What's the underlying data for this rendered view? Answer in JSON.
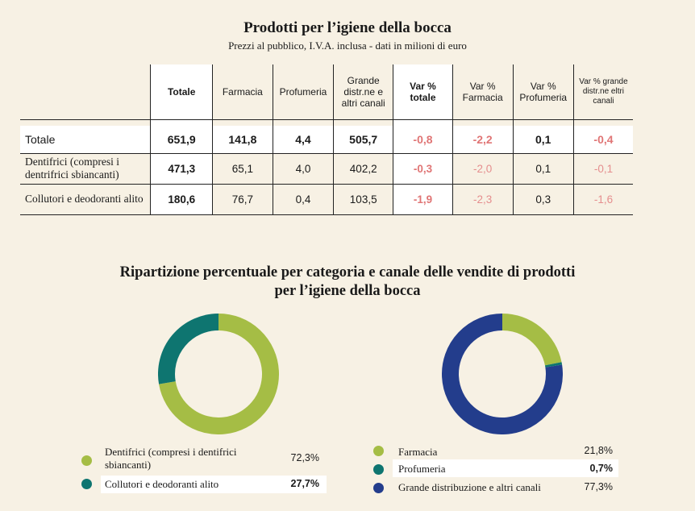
{
  "title": "Prodotti per l’igiene della bocca",
  "subtitle": "Prezzi al pubblico, I.V.A. inclusa - dati in milioni di euro",
  "table": {
    "headers": [
      "Totale",
      "Farmacia",
      "Profumeria",
      "Grande distr.ne e altri canali",
      "Var % totale",
      "Var % Farmacia",
      "Var % Profumeria",
      "Var % grande distr.ne eltri canali"
    ],
    "rows": [
      {
        "label": "Totale",
        "values": [
          "651,9",
          "141,8",
          "4,4",
          "505,7",
          "-0,8",
          "-2,2",
          "0,1",
          "-0,4"
        ]
      },
      {
        "label": "Dentifrici (compresi i dentrifrici sbiancanti)",
        "values": [
          "471,3",
          "65,1",
          "4,0",
          "402,2",
          "-0,3",
          "-2,0",
          "0,1",
          "-0,1"
        ]
      },
      {
        "label": "Collutori e deodoranti alito",
        "values": [
          "180,6",
          "76,7",
          "0,4",
          "103,5",
          "-1,9",
          "-2,3",
          "0,3",
          "-1,6"
        ]
      }
    ]
  },
  "section2_title_line1": "Ripartizione percentuale per categoria e canale delle vendite di prodotti",
  "section2_title_line2": "per l’igiene della bocca",
  "chart_data": [
    {
      "type": "pie",
      "categories": [
        "Dentifrici (compresi i dentifrici sbiancanti)",
        "Collutori e deodoranti alito"
      ],
      "values": [
        72.3,
        27.7
      ],
      "value_labels": [
        "72,3%",
        "27,7%"
      ],
      "colors": [
        "#a5bd45",
        "#0e7570"
      ],
      "legend": "bottom"
    },
    {
      "type": "pie",
      "categories": [
        "Farmacia",
        "Profumeria",
        "Grande distribuzione e altri canali"
      ],
      "values": [
        21.8,
        0.7,
        77.3
      ],
      "value_labels": [
        "21,8%",
        "0,7%",
        "77,3%"
      ],
      "colors": [
        "#a5bd45",
        "#0e7570",
        "#233d8c"
      ],
      "legend": "bottom"
    }
  ]
}
